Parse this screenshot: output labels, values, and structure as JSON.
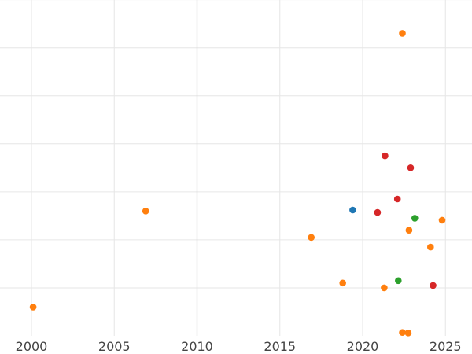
{
  "chart_data": {
    "type": "scatter",
    "title": "",
    "xlabel": "",
    "ylabel": "",
    "xlim": [
      1999.5,
      2026.5
    ],
    "ylim": [
      0,
      7
    ],
    "grid": true,
    "x_ticks": [
      2000,
      2005,
      2010,
      2015,
      2020,
      2025
    ],
    "x_tick_labels": [
      "2000",
      "2005",
      "2010",
      "2015",
      "2020",
      "2025"
    ],
    "y_ticks": [
      1,
      2,
      3,
      4,
      5,
      6,
      7
    ],
    "colors": {
      "blue": "#1f77b4",
      "orange": "#ff7f0e",
      "green": "#2ca02c",
      "red": "#d62728"
    },
    "points": [
      {
        "x": 2000.1,
        "y": 0.6,
        "color": "orange"
      },
      {
        "x": 2006.9,
        "y": 2.6,
        "color": "orange"
      },
      {
        "x": 2016.9,
        "y": 2.05,
        "color": "orange"
      },
      {
        "x": 2018.8,
        "y": 1.1,
        "color": "orange"
      },
      {
        "x": 2019.4,
        "y": 2.62,
        "color": "blue"
      },
      {
        "x": 2020.9,
        "y": 2.57,
        "color": "red"
      },
      {
        "x": 2021.3,
        "y": 1.0,
        "color": "orange"
      },
      {
        "x": 2021.35,
        "y": 3.75,
        "color": "red"
      },
      {
        "x": 2022.1,
        "y": 2.85,
        "color": "red"
      },
      {
        "x": 2022.15,
        "y": 1.15,
        "color": "green"
      },
      {
        "x": 2022.4,
        "y": 6.3,
        "color": "orange"
      },
      {
        "x": 2022.4,
        "y": 0.07,
        "color": "orange"
      },
      {
        "x": 2022.75,
        "y": 0.06,
        "color": "orange"
      },
      {
        "x": 2022.8,
        "y": 2.2,
        "color": "orange"
      },
      {
        "x": 2022.9,
        "y": 3.5,
        "color": "red"
      },
      {
        "x": 2023.15,
        "y": 2.45,
        "color": "green"
      },
      {
        "x": 2024.1,
        "y": 1.85,
        "color": "orange"
      },
      {
        "x": 2024.25,
        "y": 1.05,
        "color": "red"
      },
      {
        "x": 2024.8,
        "y": 2.41,
        "color": "orange"
      }
    ]
  }
}
